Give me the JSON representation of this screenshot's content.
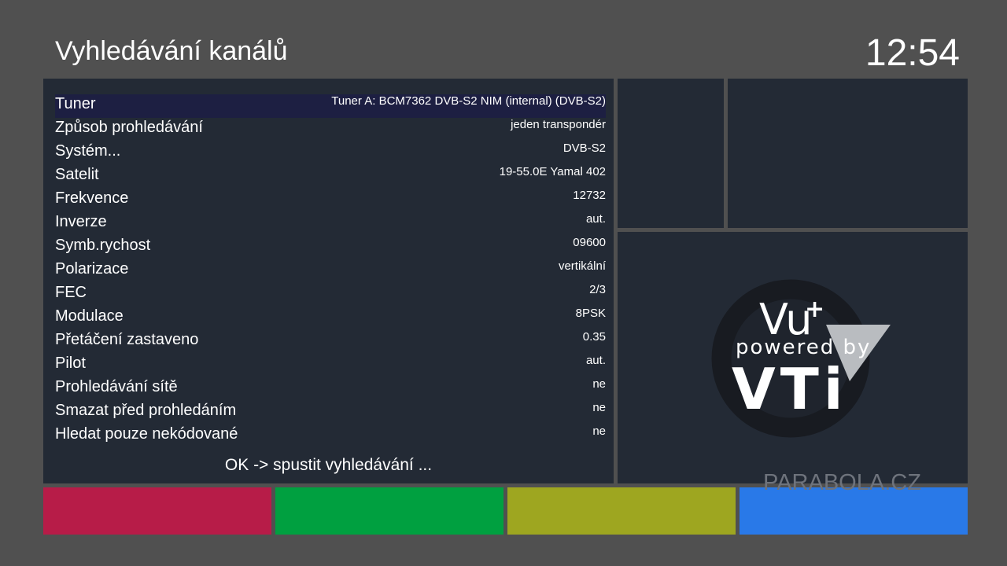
{
  "header": {
    "title": "Vyhledávání kanálů",
    "clock": "12:54"
  },
  "rows": [
    {
      "label": "Tuner",
      "value": "Tuner A: BCM7362 DVB-S2 NIM (internal) (DVB-S2)"
    },
    {
      "label": "Způsob prohledávání",
      "value": "jeden transpondér"
    },
    {
      "label": "Systém...",
      "value": "DVB-S2"
    },
    {
      "label": "Satelit",
      "value": "19-55.0E Yamal 402"
    },
    {
      "label": "Frekvence",
      "value": "12732"
    },
    {
      "label": "Inverze",
      "value": "aut."
    },
    {
      "label": "Symb.rychost",
      "value": "09600"
    },
    {
      "label": "Polarizace",
      "value": "vertikální"
    },
    {
      "label": "FEC",
      "value": "2/3"
    },
    {
      "label": "Modulace",
      "value": "8PSK"
    },
    {
      "label": "Přetáčení zastaveno",
      "value": "0.35"
    },
    {
      "label": "Pilot",
      "value": "aut."
    },
    {
      "label": "Prohledávání sítě",
      "value": "ne"
    },
    {
      "label": "Smazat před prohledáním",
      "value": "ne"
    },
    {
      "label": "Hledat pouze nekódované",
      "value": "ne"
    }
  ],
  "hint": "OK -> spustit vyhledávání ...",
  "logo": {
    "brand": "Vu",
    "sup": "+",
    "tagline": "powered by",
    "name": "VTi"
  },
  "watermark": "PARABOLA.CZ"
}
